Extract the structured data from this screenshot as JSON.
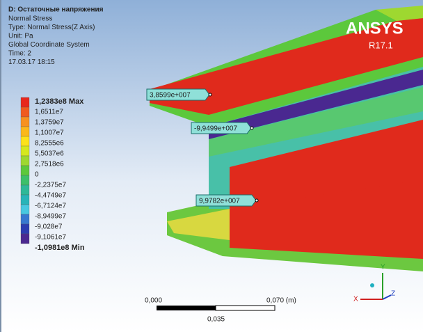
{
  "header": {
    "title": "D: Остаточные напряжения",
    "lines": [
      "Normal Stress",
      "Type: Normal Stress(Z Axis)",
      "Unit: Pa",
      "Global Coordinate System",
      "Time: 2",
      "17.03.17 18:15"
    ]
  },
  "legend": {
    "labels": [
      "1,2383e8 Max",
      "1,6511e7",
      "1,3759e7",
      "1,1007e7",
      "8,2555e6",
      "5,5037e6",
      "2,7518e6",
      "0",
      "-2,2375e7",
      "-4,4749e7",
      "-6,7124e7",
      "-8,9499e7",
      "-9,028e7",
      "-9,1061e7",
      "-1,0981e8 Min"
    ],
    "colors": [
      "#e8261c",
      "#f05a1e",
      "#f7911e",
      "#fbb81a",
      "#fde21a",
      "#d6e81e",
      "#9ed830",
      "#5cc83c",
      "#3cbf6a",
      "#2eb898",
      "#28b4b8",
      "#48c8e0",
      "#3878d0",
      "#2c3cb0",
      "#4a2890"
    ]
  },
  "probes": [
    "3,8599e+007",
    "-9,9499e+007",
    "9,9782e+007"
  ],
  "logo": {
    "name": "ANSYS",
    "version": "R17.1"
  },
  "scale": {
    "start": "0,000",
    "end": "0,070 (m)",
    "middle": "0,035"
  },
  "triad": {
    "x": "X",
    "y": "Y",
    "z": "Z"
  }
}
